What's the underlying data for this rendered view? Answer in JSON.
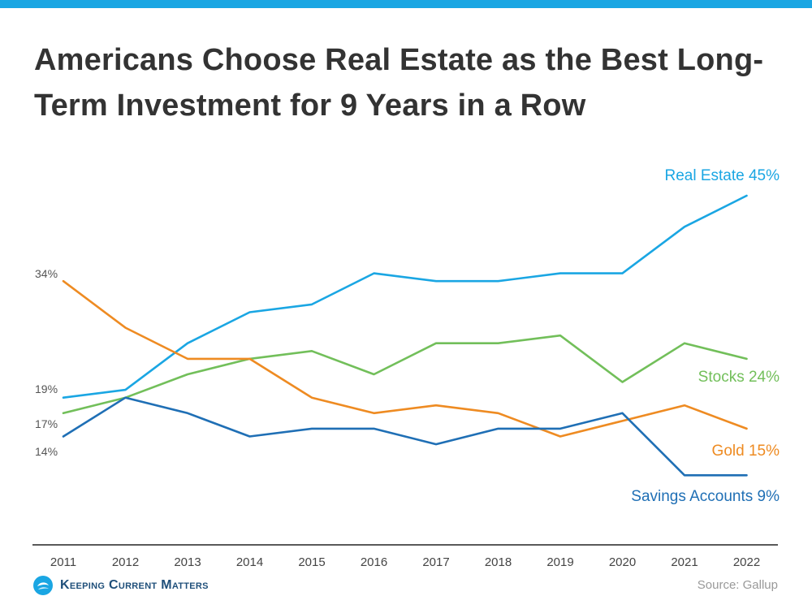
{
  "title": "Americans Choose Real Estate as the Best Long-Term Investment for 9 Years in a Row",
  "source": "Source: Gallup",
  "brand": "Keeping Current Matters",
  "colors": {
    "top_bar": "#1aa6e3",
    "real_estate": "#1aa6e3",
    "stocks": "#72bf5a",
    "gold": "#ee8b22",
    "savings": "#1f6fb5"
  },
  "chart_data": {
    "type": "line",
    "x": [
      "2011",
      "2012",
      "2013",
      "2014",
      "2015",
      "2016",
      "2017",
      "2018",
      "2019",
      "2020",
      "2021",
      "2022"
    ],
    "ylim": [
      0,
      50
    ],
    "grid": false,
    "start_labels": [
      "34%",
      "19%",
      "17%",
      "14%"
    ],
    "series": [
      {
        "name": "Real Estate",
        "end_label": "Real Estate 45%",
        "color": "#1aa6e3",
        "values": [
          19,
          20,
          26,
          30,
          31,
          35,
          34,
          34,
          35,
          35,
          41,
          45
        ]
      },
      {
        "name": "Stocks",
        "end_label": "Stocks 24%",
        "color": "#72bf5a",
        "values": [
          17,
          19,
          22,
          24,
          25,
          22,
          26,
          26,
          27,
          21,
          26,
          24
        ]
      },
      {
        "name": "Gold",
        "end_label": "Gold 15%",
        "color": "#ee8b22",
        "values": [
          34,
          28,
          24,
          24,
          19,
          17,
          18,
          17,
          14,
          16,
          18,
          15
        ]
      },
      {
        "name": "Savings Accounts",
        "end_label": "Savings Accounts 9%",
        "color": "#1f6fb5",
        "values": [
          14,
          19,
          17,
          14,
          15,
          15,
          13,
          15,
          15,
          17,
          9,
          9
        ]
      }
    ]
  }
}
